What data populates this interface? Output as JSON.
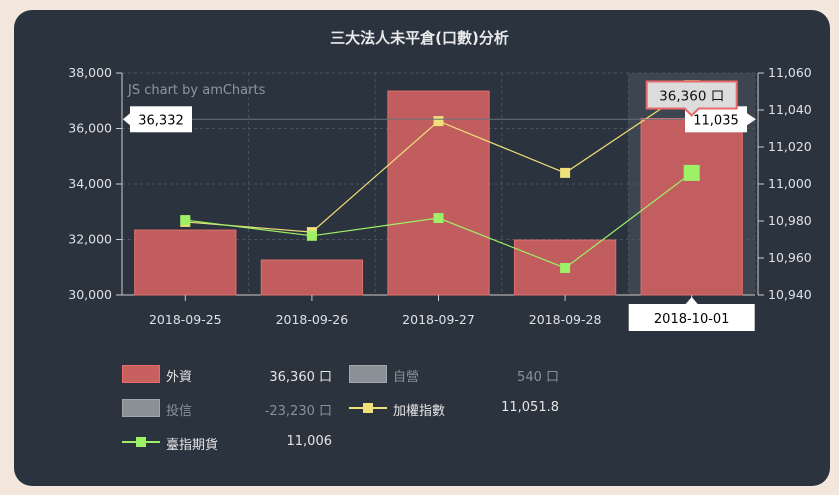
{
  "chart_data": {
    "type": "bar",
    "title": "三大法人未平倉(口數)分析",
    "watermark": "JS chart by amCharts",
    "categories": [
      "2018-09-25",
      "2018-09-26",
      "2018-09-27",
      "2018-09-28",
      "2018-10-01"
    ],
    "left_axis": {
      "ylim": [
        30000,
        38000
      ],
      "ticks": [
        "30,000",
        "32,000",
        "34,000",
        "36,000",
        "38,000"
      ]
    },
    "right_axis": {
      "ylim": [
        10940,
        11060
      ],
      "ticks": [
        "10,940",
        "10,960",
        "10,980",
        "11,000",
        "11,020",
        "11,040",
        "11,060"
      ]
    },
    "grid": true,
    "series": [
      {
        "name": "外資",
        "type": "bar",
        "axis": "left",
        "color": "#c96060",
        "values": [
          32340,
          31260,
          37350,
          31980,
          36360
        ]
      },
      {
        "name": "加權指數",
        "type": "line",
        "axis": "right",
        "color": "#f0df7a",
        "values": [
          10979.5,
          10974,
          11034,
          11006,
          11051.8
        ]
      },
      {
        "name": "臺指期貨",
        "type": "line",
        "axis": "right",
        "color": "#9ef066",
        "values": [
          10980.5,
          10972,
          10981.6,
          10954.6,
          11006
        ]
      }
    ],
    "cursor": {
      "category": "2018-10-01",
      "left_value": "36,332",
      "right_value": "11,035",
      "tooltip": "36,360 口"
    }
  },
  "legend": [
    {
      "name": "外資",
      "value": "36,360 口",
      "color": "#c96060",
      "kind": "box",
      "enabled": true
    },
    {
      "name": "自營",
      "value": "540 口",
      "color": "#8a9096",
      "kind": "box",
      "enabled": false
    },
    {
      "name": "投信",
      "value": "-23,230 口",
      "color": "#8a9096",
      "kind": "box",
      "enabled": false
    },
    {
      "name": "加權指數",
      "value": "11,051.8",
      "color": "#f0df7a",
      "kind": "line",
      "enabled": true
    },
    {
      "name": "臺指期貨",
      "value": "11,006",
      "color": "#9ef066",
      "kind": "line",
      "enabled": true
    }
  ]
}
